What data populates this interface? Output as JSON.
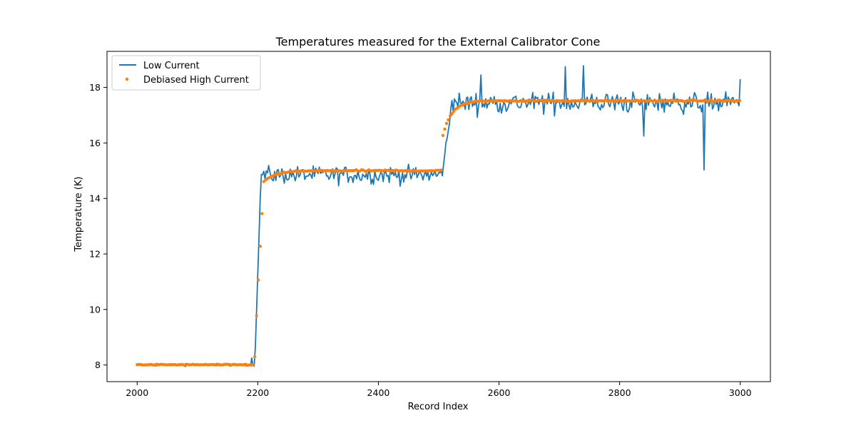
{
  "chart_data": {
    "type": "line",
    "title": "Temperatures measured for the External Calibrator Cone",
    "xlabel": "Record Index",
    "ylabel": "Temperature (K)",
    "xlim": [
      1950,
      3050
    ],
    "ylim": [
      7.4,
      19.3
    ],
    "xticks": [
      2000,
      2200,
      2400,
      2600,
      2800,
      3000
    ],
    "yticks": [
      8,
      10,
      12,
      14,
      16,
      18
    ],
    "legend_position": "top-left",
    "series": [
      {
        "name": "Low Current",
        "style": "line",
        "color": "#1f77b4",
        "model": {
          "x_start": 2000,
          "x_end": 3000,
          "step": 2,
          "levels": [
            {
              "from": 2000,
              "to": 2195,
              "base": 8.0,
              "noise": 0.04
            },
            {
              "from": 2195,
              "to": 2205,
              "ramp_to": 14.6,
              "noise": 0.0
            },
            {
              "from": 2205,
              "to": 2505,
              "base": 14.85,
              "noise": 0.3
            },
            {
              "from": 2505,
              "to": 2520,
              "ramp_to": 17.0,
              "noise": 0.2
            },
            {
              "from": 2520,
              "to": 3000,
              "base": 17.45,
              "noise": 0.35
            }
          ],
          "spikes": [
            [
              2190,
              8.25
            ],
            [
              2570,
              18.45
            ],
            [
              2710,
              18.75
            ],
            [
              2740,
              18.78
            ],
            [
              2840,
              16.25
            ],
            [
              2940,
              15.03
            ]
          ],
          "end_value": 18.3
        }
      },
      {
        "name": "Debiased High Current",
        "style": "scatter",
        "color": "#ff7f0e",
        "model": {
          "x_start": 2000,
          "x_end": 3000,
          "step": 3,
          "segments": [
            {
              "from": 2000,
              "to": 2195,
              "base": 8.01
            },
            {
              "from": 2195,
              "to": 2210,
              "rise_from": 8.3,
              "rise_to": 14.6
            },
            {
              "from": 2210,
              "to": 2505,
              "approach": 15.0,
              "start": 14.6,
              "tau": 20
            },
            {
              "from": 2505,
              "to": 3000,
              "approach": 17.52,
              "start": 16.1,
              "tau": 15
            }
          ]
        }
      }
    ]
  }
}
